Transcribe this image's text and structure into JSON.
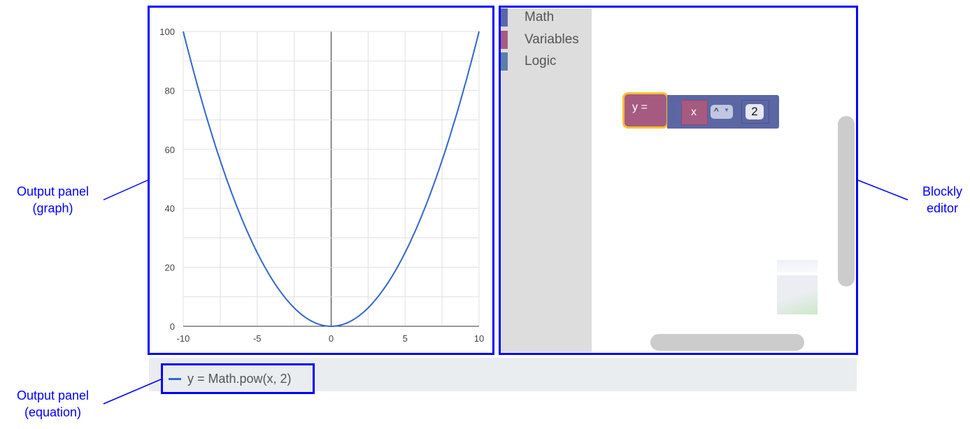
{
  "annotations": {
    "graph_panel": [
      "Output panel",
      "(graph)"
    ],
    "editor": [
      "Blockly",
      "editor"
    ],
    "equation_panel": [
      "Output panel",
      "(equation)"
    ],
    "box_color": "#0000ff"
  },
  "chart_data": {
    "type": "line",
    "function": "y = x^2",
    "x": [
      -10,
      -9,
      -8,
      -7,
      -6,
      -5,
      -4,
      -3,
      -2,
      -1,
      0,
      1,
      2,
      3,
      4,
      5,
      6,
      7,
      8,
      9,
      10
    ],
    "series": [
      {
        "values": [
          100,
          81,
          64,
          49,
          36,
          25,
          16,
          9,
          4,
          1,
          0,
          1,
          4,
          9,
          16,
          25,
          36,
          49,
          64,
          81,
          100
        ],
        "color": "#3366cc"
      }
    ],
    "xlim": [
      -10,
      10
    ],
    "ylim": [
      0,
      100
    ],
    "xticks": [
      "-10",
      "-5",
      "0",
      "5",
      "10"
    ],
    "yticks": [
      "0",
      "20",
      "40",
      "60",
      "80",
      "100"
    ],
    "grid": true
  },
  "toolbox": {
    "categories": [
      {
        "label": "Math",
        "color": "#5b67a5"
      },
      {
        "label": "Variables",
        "color": "#a55b80"
      },
      {
        "label": "Logic",
        "color": "#5b80a5"
      }
    ]
  },
  "block": {
    "assign_label": "y =",
    "variable": "x",
    "operator": "^",
    "exponent": "2",
    "assign_color": "#a55b80",
    "math_color": "#5b67a5",
    "highlight": "#fbc02d"
  },
  "legend": {
    "equation": "y = Math.pow(x, 2)",
    "color": "#3366cc"
  }
}
